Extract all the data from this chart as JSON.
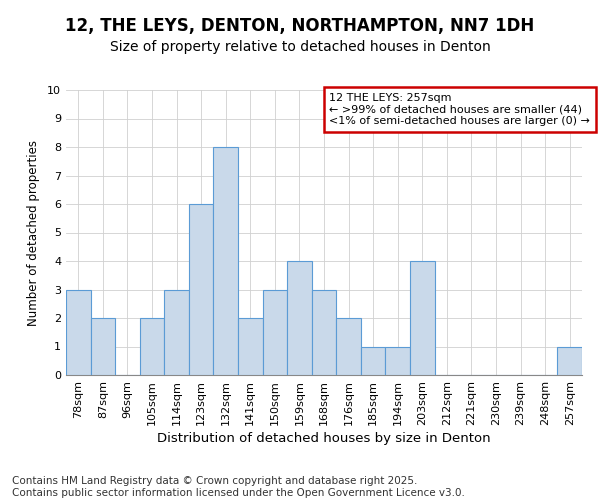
{
  "title1": "12, THE LEYS, DENTON, NORTHAMPTON, NN7 1DH",
  "title2": "Size of property relative to detached houses in Denton",
  "xlabel": "Distribution of detached houses by size in Denton",
  "ylabel": "Number of detached properties",
  "categories": [
    "78sqm",
    "87sqm",
    "96sqm",
    "105sqm",
    "114sqm",
    "123sqm",
    "132sqm",
    "141sqm",
    "150sqm",
    "159sqm",
    "168sqm",
    "176sqm",
    "185sqm",
    "194sqm",
    "203sqm",
    "212sqm",
    "221sqm",
    "230sqm",
    "239sqm",
    "248sqm",
    "257sqm"
  ],
  "values": [
    3,
    2,
    0,
    2,
    3,
    6,
    8,
    2,
    3,
    4,
    3,
    2,
    1,
    1,
    4,
    0,
    0,
    0,
    0,
    0,
    1
  ],
  "bar_color": "#c9d9ea",
  "bar_edgecolor": "#5b9bd5",
  "ylim": [
    0,
    10
  ],
  "yticks": [
    0,
    1,
    2,
    3,
    4,
    5,
    6,
    7,
    8,
    9,
    10
  ],
  "grid_color": "#d0d0d0",
  "background_color": "#ffffff",
  "legend_text1": "12 THE LEYS: 257sqm",
  "legend_text2": "← >99% of detached houses are smaller (44)",
  "legend_text3": "<1% of semi-detached houses are larger (0) →",
  "legend_box_color": "#cc0000",
  "footer1": "Contains HM Land Registry data © Crown copyright and database right 2025.",
  "footer2": "Contains public sector information licensed under the Open Government Licence v3.0.",
  "title1_fontsize": 12,
  "title2_fontsize": 10,
  "tick_fontsize": 8,
  "xlabel_fontsize": 9.5,
  "ylabel_fontsize": 8.5,
  "legend_fontsize": 8,
  "footer_fontsize": 7.5
}
